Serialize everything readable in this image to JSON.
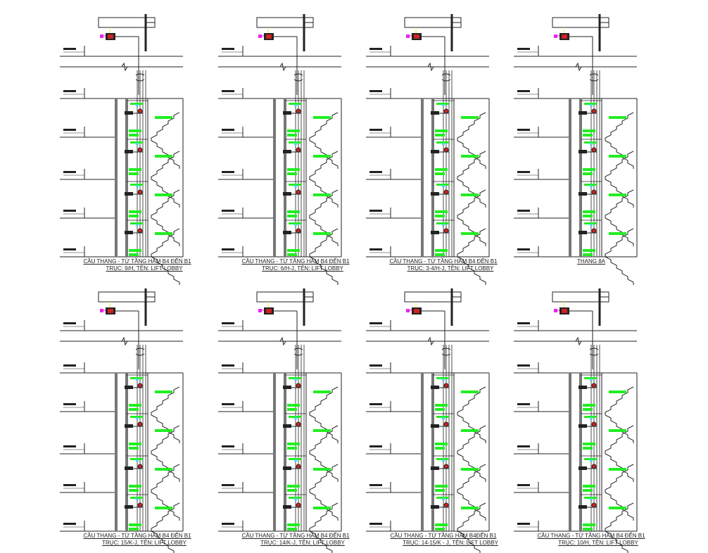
{
  "colors": {
    "line": "#222222",
    "wall": "#777777",
    "green": "#22ee22",
    "magenta": "#ee22ee",
    "red": "#cc2222",
    "yellow": "#eeee44",
    "cyan": "#44ddee"
  },
  "panels": [
    {
      "title": "CẦU THANG - TỪ TẦNG HẦM B4 ĐẾN B1",
      "subtitle": "TRỤC:  9/H, TÊN:  LIFT LOBBY"
    },
    {
      "title": "CẦU THANG - TỪ TẦNG HẦM B4 ĐẾN B1",
      "subtitle": "TRỤC:  6/H-J, TÊN:  LIFT LOBBY"
    },
    {
      "title": "CẦU THANG - TỪ TẦNG HẦM B4 ĐẾN B1",
      "subtitle": "TRỤC:  3-4/H-J, TÊN:  LIFT LOBBY"
    },
    {
      "title": "THANG 8A",
      "subtitle": ""
    },
    {
      "title": "CẦU THANG - TỪ TẦNG HẦM B4 ĐẾN B1",
      "subtitle": "TRỤC:  15/K-J, TÊN:  LIFT LOBBY"
    },
    {
      "title": "CẦU THANG - TỪ TẦNG HẦM B4 ĐẾN B1",
      "subtitle": "TRỤC:  14/K-J, TÊN:  LIFT LOBBY"
    },
    {
      "title": "CẦU THANG - TỪ TẦNG HẦM B4ĐẾN B1",
      "subtitle": "TRỤC:  14-15/K - J, TÊN:  LIFT LOBBY"
    },
    {
      "title": "CẦU THANG - TỪ TẦNG HẦM B4 ĐẾN B1",
      "subtitle": "TRỤC:  10/H, TÊN:  LIFT LOBBY"
    }
  ]
}
